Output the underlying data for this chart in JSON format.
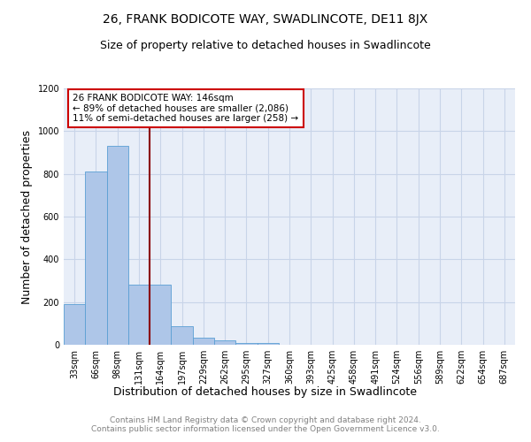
{
  "title": "26, FRANK BODICOTE WAY, SWADLINCOTE, DE11 8JX",
  "subtitle": "Size of property relative to detached houses in Swadlincote",
  "xlabel": "Distribution of detached houses by size in Swadlincote",
  "ylabel": "Number of detached properties",
  "bin_labels": [
    "33sqm",
    "66sqm",
    "98sqm",
    "131sqm",
    "164sqm",
    "197sqm",
    "229sqm",
    "262sqm",
    "295sqm",
    "327sqm",
    "360sqm",
    "393sqm",
    "425sqm",
    "458sqm",
    "491sqm",
    "524sqm",
    "556sqm",
    "589sqm",
    "622sqm",
    "654sqm",
    "687sqm"
  ],
  "bar_heights": [
    190,
    810,
    930,
    280,
    280,
    85,
    35,
    20,
    10,
    10,
    0,
    0,
    0,
    0,
    0,
    0,
    0,
    0,
    0,
    0,
    0
  ],
  "bar_color": "#aec6e8",
  "bar_edge_color": "#5a9fd4",
  "property_line_color": "#8b0000",
  "annotation_text": "26 FRANK BODICOTE WAY: 146sqm\n← 89% of detached houses are smaller (2,086)\n11% of semi-detached houses are larger (258) →",
  "annotation_box_color": "#ffffff",
  "annotation_box_edge_color": "#cc0000",
  "ylim": [
    0,
    1200
  ],
  "yticks": [
    0,
    200,
    400,
    600,
    800,
    1000,
    1200
  ],
  "footer_text": "Contains HM Land Registry data © Crown copyright and database right 2024.\nContains public sector information licensed under the Open Government Licence v3.0.",
  "title_fontsize": 10,
  "subtitle_fontsize": 9,
  "axis_label_fontsize": 9,
  "tick_fontsize": 7,
  "annotation_fontsize": 7.5,
  "footer_fontsize": 6.5,
  "background_color": "#ffffff",
  "plot_bg_color": "#e8eef8",
  "grid_color": "#c8d4e8"
}
